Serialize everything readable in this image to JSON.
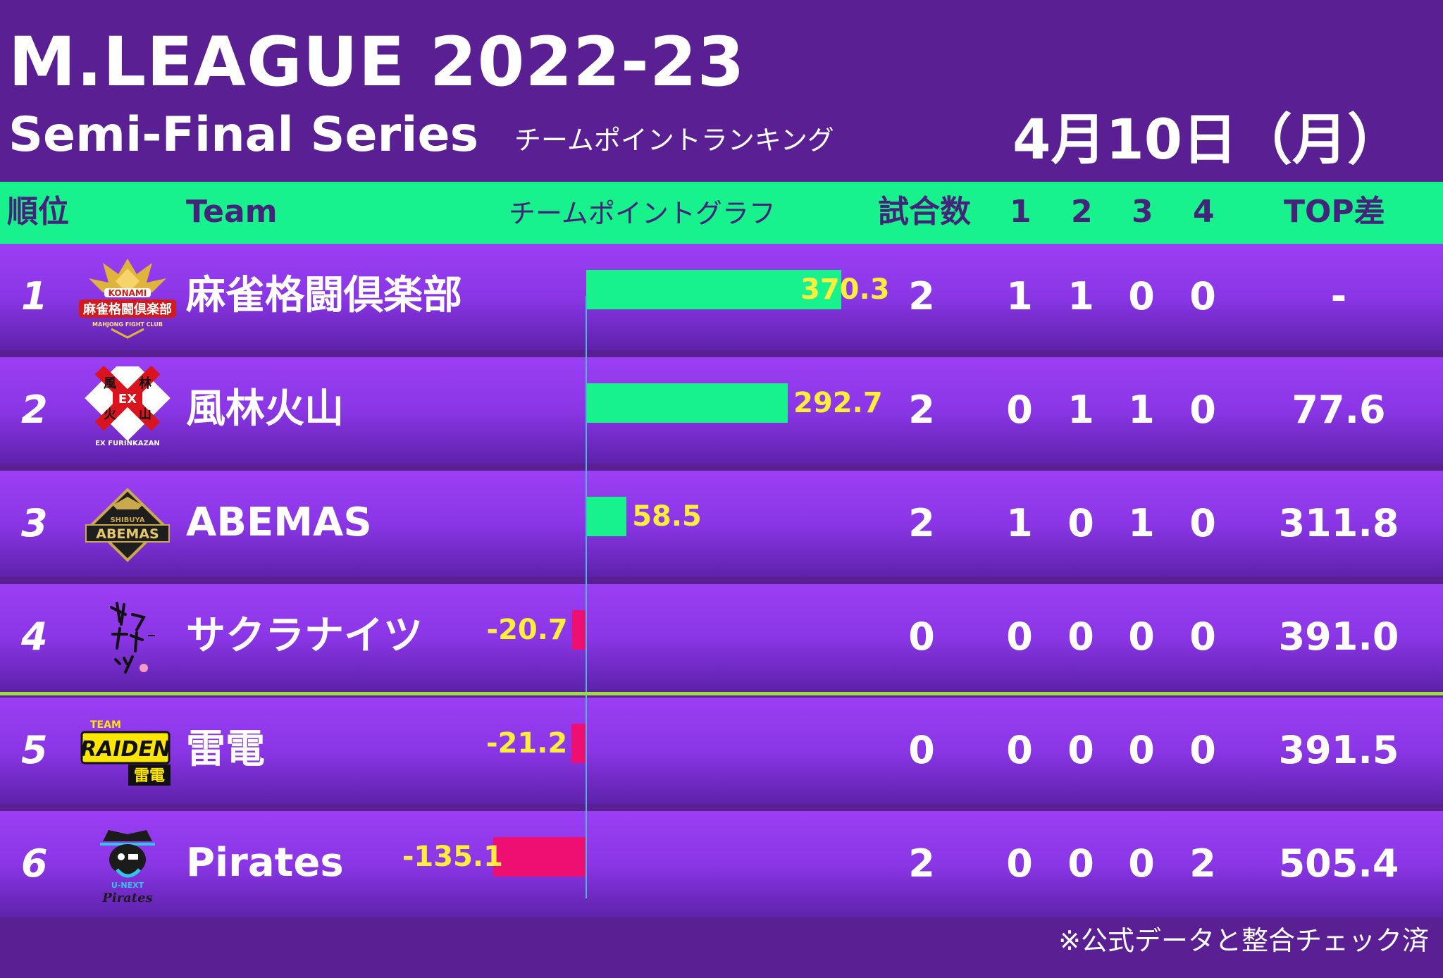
{
  "title": {
    "main": "M.LEAGUE 2022-23",
    "sub": "Semi-Final Series",
    "label": "チームポイントランキング",
    "date": "4月10日（月）"
  },
  "header": {
    "rank": "順位",
    "team": "Team",
    "graph": "チームポイントグラフ",
    "games": "試合数",
    "p1": "1",
    "p2": "2",
    "p3": "3",
    "p4": "4",
    "top_diff": "TOP差"
  },
  "chart_data": {
    "type": "bar",
    "orientation": "horizontal",
    "categories": [
      "麻雀格闘倶楽部",
      "風林火山",
      "ABEMAS",
      "サクラナイツ",
      "雷電",
      "Pirates"
    ],
    "values": [
      370.3,
      292.7,
      58.5,
      -20.7,
      -21.2,
      -135.1
    ],
    "colors": {
      "positive": "#18f28c",
      "negative": "#ee0f72",
      "label": "#ffef3a"
    }
  },
  "rows": [
    {
      "rank": "1",
      "team": "麻雀格闘倶楽部",
      "logo": "konami-logo",
      "points": 370.3,
      "points_label": "370.3",
      "games": "2",
      "p1": "1",
      "p2": "1",
      "p3": "0",
      "p4": "0",
      "top_diff": "-"
    },
    {
      "rank": "2",
      "team": "風林火山",
      "logo": "furinkazan-logo",
      "points": 292.7,
      "points_label": "292.7",
      "games": "2",
      "p1": "0",
      "p2": "1",
      "p3": "1",
      "p4": "0",
      "top_diff": "77.6"
    },
    {
      "rank": "3",
      "team": "ABEMAS",
      "logo": "abemas-logo",
      "points": 58.5,
      "points_label": "58.5",
      "games": "2",
      "p1": "1",
      "p2": "0",
      "p3": "1",
      "p4": "0",
      "top_diff": "311.8"
    },
    {
      "rank": "4",
      "team": "サクラナイツ",
      "logo": "sakura-knights-logo",
      "points": -20.7,
      "points_label": "-20.7",
      "games": "0",
      "p1": "0",
      "p2": "0",
      "p3": "0",
      "p4": "0",
      "top_diff": "391.0"
    },
    {
      "rank": "5",
      "team": "雷電",
      "logo": "raiden-logo",
      "points": -21.2,
      "points_label": "-21.2",
      "games": "0",
      "p1": "0",
      "p2": "0",
      "p3": "0",
      "p4": "0",
      "top_diff": "391.5"
    },
    {
      "rank": "6",
      "team": "Pirates",
      "logo": "pirates-logo",
      "points": -135.1,
      "points_label": "-135.1",
      "games": "2",
      "p1": "0",
      "p2": "0",
      "p3": "0",
      "p4": "2",
      "top_diff": "505.4"
    }
  ],
  "logos": {
    "konami": {
      "brand": "KONAMI",
      "name": "麻雀格闘倶楽部",
      "tag": "MAHJONG FIGHT CLUB"
    },
    "furinkazan": {
      "mark": "EX",
      "chars": [
        "風",
        "林",
        "火",
        "山"
      ],
      "tag": "EX FURINKAZAN"
    },
    "abemas": {
      "top": "SHIBUYA",
      "name": "ABEMAS"
    },
    "raiden": {
      "top": "TEAM",
      "name": "RAIDEN",
      "jp": "雷電"
    },
    "pirates": {
      "top": "U-NEXT",
      "name": "Pirates"
    }
  },
  "footnote": "※公式データと整合チェック済"
}
